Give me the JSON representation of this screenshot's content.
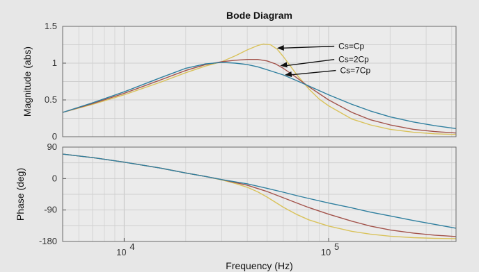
{
  "chart_data": {
    "type": "line",
    "title": "Bode Diagram",
    "xlabel": "Frequency  (Hz)",
    "x_scale": "log",
    "xlim": [
      5000,
      420000
    ],
    "x_tick_values": [
      10000,
      100000
    ],
    "x_tick_labels": [
      {
        "base": "10",
        "exp": "4"
      },
      {
        "base": "10",
        "exp": "5"
      }
    ],
    "grid": true,
    "panels": [
      {
        "name": "magnitude",
        "ylabel": "Magnitude (abs)",
        "ylim": [
          0,
          1.5
        ],
        "y_ticks": [
          0,
          0.5,
          1,
          1.5
        ],
        "y_tick_labels": [
          "0",
          "0.5",
          "1",
          "1.5"
        ],
        "series": [
          {
            "name": "Cs=Cp",
            "color": "#d9c25a",
            "points": [
              [
                5000,
                0.33
              ],
              [
                7000,
                0.44
              ],
              [
                10000,
                0.57
              ],
              [
                15000,
                0.74
              ],
              [
                20000,
                0.87
              ],
              [
                25000,
                0.96
              ],
              [
                30000,
                1.02
              ],
              [
                35000,
                1.1
              ],
              [
                40000,
                1.18
              ],
              [
                45000,
                1.24
              ],
              [
                48000,
                1.26
              ],
              [
                52000,
                1.25
              ],
              [
                56000,
                1.19
              ],
              [
                60000,
                1.09
              ],
              [
                65000,
                0.96
              ],
              [
                70000,
                0.84
              ],
              [
                80000,
                0.65
              ],
              [
                90000,
                0.51
              ],
              [
                100000,
                0.42
              ],
              [
                130000,
                0.24
              ],
              [
                160000,
                0.16
              ],
              [
                200000,
                0.1
              ],
              [
                260000,
                0.06
              ],
              [
                330000,
                0.04
              ],
              [
                420000,
                0.03
              ]
            ]
          },
          {
            "name": "Cs=2Cp",
            "color": "#a2524a",
            "points": [
              [
                5000,
                0.33
              ],
              [
                7000,
                0.45
              ],
              [
                10000,
                0.59
              ],
              [
                15000,
                0.77
              ],
              [
                20000,
                0.9
              ],
              [
                25000,
                0.98
              ],
              [
                30000,
                1.02
              ],
              [
                35000,
                1.04
              ],
              [
                40000,
                1.05
              ],
              [
                45000,
                1.05
              ],
              [
                50000,
                1.03
              ],
              [
                55000,
                0.99
              ],
              [
                60000,
                0.93
              ],
              [
                70000,
                0.8
              ],
              [
                80000,
                0.68
              ],
              [
                100000,
                0.5
              ],
              [
                130000,
                0.33
              ],
              [
                160000,
                0.23
              ],
              [
                200000,
                0.16
              ],
              [
                260000,
                0.1
              ],
              [
                330000,
                0.07
              ],
              [
                420000,
                0.05
              ]
            ]
          },
          {
            "name": "Cs=7Cp",
            "color": "#2f7f9f",
            "points": [
              [
                5000,
                0.33
              ],
              [
                7000,
                0.46
              ],
              [
                10000,
                0.61
              ],
              [
                15000,
                0.8
              ],
              [
                20000,
                0.93
              ],
              [
                25000,
                0.99
              ],
              [
                30000,
                1.01
              ],
              [
                35000,
                1.0
              ],
              [
                40000,
                0.98
              ],
              [
                45000,
                0.95
              ],
              [
                50000,
                0.91
              ],
              [
                60000,
                0.84
              ],
              [
                70000,
                0.76
              ],
              [
                80000,
                0.69
              ],
              [
                100000,
                0.57
              ],
              [
                130000,
                0.44
              ],
              [
                160000,
                0.35
              ],
              [
                200000,
                0.27
              ],
              [
                260000,
                0.2
              ],
              [
                330000,
                0.15
              ],
              [
                420000,
                0.11
              ]
            ]
          }
        ],
        "annotations": [
          {
            "text": "Cs=Cp",
            "target_series": "Cs=Cp",
            "target_x": 55000,
            "label_at": [
              110000,
              1.23
            ]
          },
          {
            "text": "Cs=2Cp",
            "target_series": "Cs=2Cp",
            "target_x": 57000,
            "label_at": [
              110000,
              1.05
            ]
          },
          {
            "text": "Cs=7Cp",
            "target_series": "Cs=7Cp",
            "target_x": 60000,
            "label_at": [
              112000,
              0.9
            ]
          }
        ]
      },
      {
        "name": "phase",
        "ylabel": "Phase (deg)",
        "ylim": [
          -180,
          90
        ],
        "y_ticks": [
          -180,
          -90,
          0,
          90
        ],
        "y_tick_labels": [
          "-180",
          "-90",
          "0",
          "90"
        ],
        "series": [
          {
            "name": "Cs=Cp",
            "color": "#d9c25a",
            "points": [
              [
                5000,
                70
              ],
              [
                7000,
                60
              ],
              [
                10000,
                47
              ],
              [
                15000,
                30
              ],
              [
                20000,
                16
              ],
              [
                25000,
                6
              ],
              [
                30000,
                -4
              ],
              [
                35000,
                -14
              ],
              [
                40000,
                -25
              ],
              [
                45000,
                -38
              ],
              [
                50000,
                -53
              ],
              [
                55000,
                -68
              ],
              [
                60000,
                -82
              ],
              [
                70000,
                -103
              ],
              [
                80000,
                -118
              ],
              [
                100000,
                -136
              ],
              [
                130000,
                -151
              ],
              [
                160000,
                -159
              ],
              [
                200000,
                -165
              ],
              [
                260000,
                -169
              ],
              [
                330000,
                -171
              ],
              [
                420000,
                -172
              ]
            ]
          },
          {
            "name": "Cs=2Cp",
            "color": "#a2524a",
            "points": [
              [
                5000,
                70
              ],
              [
                7000,
                60
              ],
              [
                10000,
                47
              ],
              [
                15000,
                30
              ],
              [
                20000,
                16
              ],
              [
                25000,
                6
              ],
              [
                30000,
                -3
              ],
              [
                40000,
                -19
              ],
              [
                50000,
                -37
              ],
              [
                60000,
                -55
              ],
              [
                70000,
                -70
              ],
              [
                80000,
                -83
              ],
              [
                100000,
                -102
              ],
              [
                130000,
                -122
              ],
              [
                160000,
                -136
              ],
              [
                200000,
                -147
              ],
              [
                260000,
                -156
              ],
              [
                330000,
                -162
              ],
              [
                420000,
                -166
              ]
            ]
          },
          {
            "name": "Cs=7Cp",
            "color": "#2f7f9f",
            "points": [
              [
                5000,
                70
              ],
              [
                7000,
                60
              ],
              [
                10000,
                47
              ],
              [
                15000,
                30
              ],
              [
                20000,
                16
              ],
              [
                25000,
                6
              ],
              [
                30000,
                -3
              ],
              [
                40000,
                -15
              ],
              [
                50000,
                -28
              ],
              [
                60000,
                -39
              ],
              [
                70000,
                -49
              ],
              [
                80000,
                -57
              ],
              [
                100000,
                -70
              ],
              [
                130000,
                -84
              ],
              [
                160000,
                -96
              ],
              [
                200000,
                -107
              ],
              [
                260000,
                -120
              ],
              [
                330000,
                -131
              ],
              [
                420000,
                -142
              ]
            ]
          }
        ]
      }
    ]
  }
}
